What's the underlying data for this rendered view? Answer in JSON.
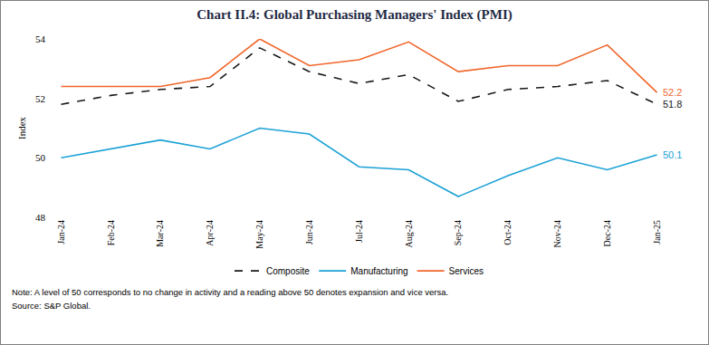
{
  "chart_data": {
    "type": "line",
    "title": "Chart II.4: Global Purchasing Managers' Index (PMI)",
    "y_label": "Index",
    "categories": [
      "Jan-24",
      "Feb-24",
      "Mar-24",
      "Apr-24",
      "May-24",
      "Jun-24",
      "Jul-24",
      "Aug-24",
      "Sep-24",
      "Oct-24",
      "Nov-24",
      "Dec-24",
      "Jan-25"
    ],
    "series": [
      {
        "name": "Composite",
        "color": "#1a1a1a",
        "line_style": "dash",
        "values": [
          51.8,
          52.1,
          52.3,
          52.4,
          53.7,
          52.9,
          52.5,
          52.8,
          51.9,
          52.3,
          52.4,
          52.6,
          51.8
        ],
        "value_labels": [
          null,
          null,
          null,
          null,
          null,
          null,
          null,
          null,
          null,
          null,
          null,
          null,
          "51.8"
        ]
      },
      {
        "name": "Manufacturing",
        "color": "#1ba1d6",
        "line_style": "solid",
        "values": [
          50.0,
          50.3,
          50.6,
          50.3,
          51.0,
          50.8,
          49.7,
          49.6,
          48.7,
          49.4,
          50.0,
          49.6,
          50.1
        ],
        "value_labels": [
          null,
          null,
          null,
          null,
          null,
          null,
          null,
          null,
          null,
          null,
          null,
          null,
          "50.1"
        ]
      },
      {
        "name": "Services",
        "color": "#f0662b",
        "line_style": "solid",
        "values": [
          52.4,
          52.4,
          52.4,
          52.7,
          54.0,
          53.1,
          53.3,
          53.9,
          52.9,
          53.1,
          53.1,
          53.8,
          52.2
        ],
        "value_labels": [
          null,
          null,
          null,
          null,
          null,
          null,
          null,
          null,
          null,
          null,
          null,
          null,
          "52.2"
        ]
      }
    ],
    "ylim": [
      48,
      54
    ],
    "yticks": [
      48,
      50,
      52,
      54
    ],
    "grid": false,
    "legend": "bottom",
    "note": "Note: A level of 50 corresponds to no change in activity and a reading above 50 denotes expansion and vice versa.",
    "source": "Source: S&P Global."
  }
}
